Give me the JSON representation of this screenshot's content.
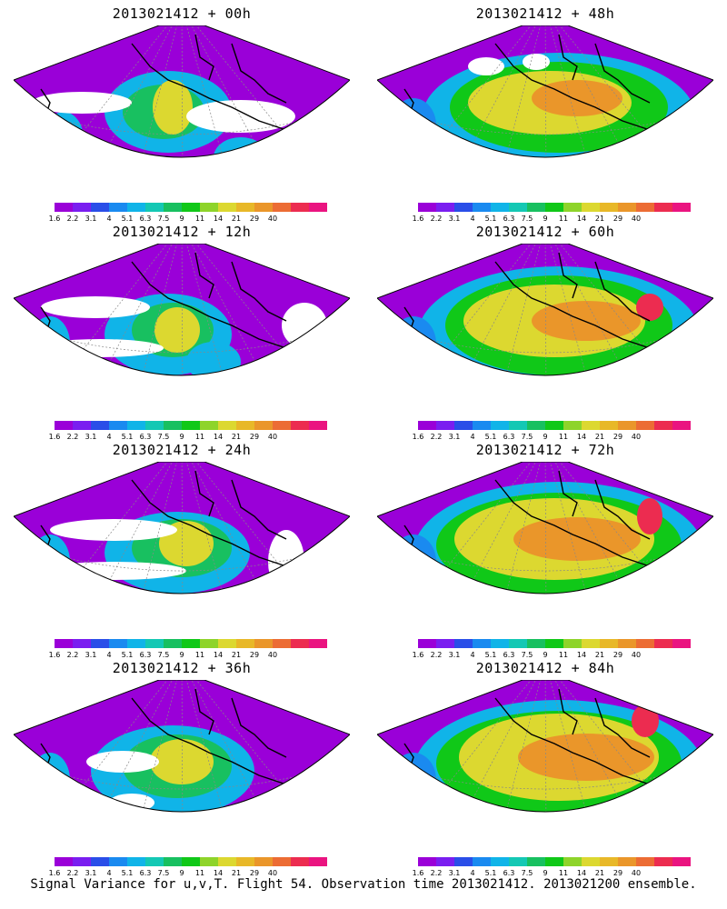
{
  "caption": "Signal Variance for u,v,T. Flight 54. Observation time 2013021412. 2013021200 ensemble.",
  "colorbar": {
    "colors": [
      "#9a00d8",
      "#7a1ef0",
      "#2a4ee8",
      "#1a8af0",
      "#10b4e8",
      "#14c8b4",
      "#18c060",
      "#10c818",
      "#8ed42a",
      "#dcd830",
      "#e8b828",
      "#ea962a",
      "#ec6c34",
      "#ec2c50",
      "#ea1480"
    ],
    "ticks": [
      "1.6",
      "2.2",
      "3.1",
      "4",
      "5.1",
      "6.3",
      "7.5",
      "9",
      "11",
      "14",
      "21",
      "29",
      "40"
    ]
  },
  "panels": [
    {
      "id": "00h",
      "title": "2013021412 + 00h"
    },
    {
      "id": "48h",
      "title": "2013021412 + 48h"
    },
    {
      "id": "12h",
      "title": "2013021412 + 12h"
    },
    {
      "id": "60h",
      "title": "2013021412 + 60h"
    },
    {
      "id": "24h",
      "title": "2013021412 + 24h"
    },
    {
      "id": "72h",
      "title": "2013021412 + 72h"
    },
    {
      "id": "36h",
      "title": "2013021412 + 36h"
    },
    {
      "id": "84h",
      "title": "2013021412 + 84h"
    }
  ]
}
